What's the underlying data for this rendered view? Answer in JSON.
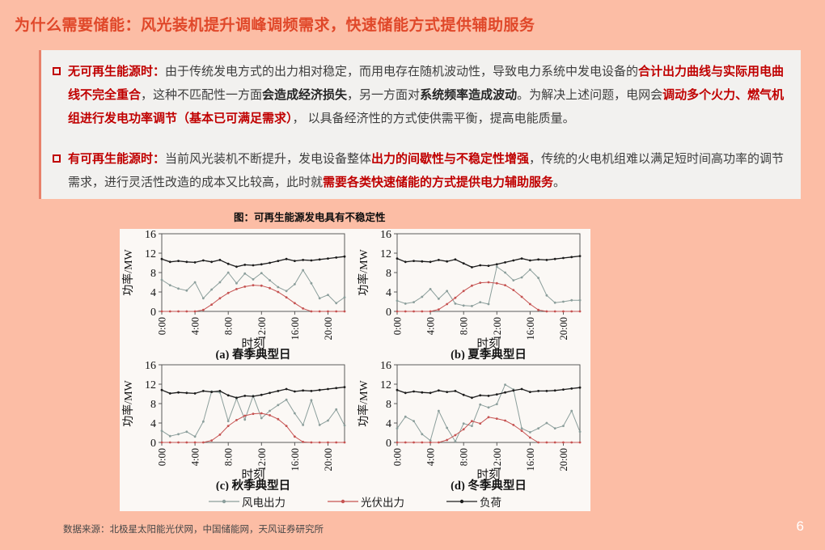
{
  "title": "为什么需要储能：风光装机提升调峰调频需求，快速储能方式提供辅助服务",
  "colors": {
    "background": "#fcbda5",
    "title_red": "#e0482a",
    "accent_red": "#c00000",
    "box_background": "#f2f1ef",
    "figure_background": "#fbf8f5",
    "wind_line": "#8b9e9b",
    "pv_line": "#c65352",
    "load_line": "#1c1c1c"
  },
  "bullets": [
    {
      "segments": [
        {
          "t": "无可再生能源时：",
          "s": "red"
        },
        {
          "t": "由于传统发电方式的出力相对稳定，而用电存在随机波动性，导致电力系统中发电设备的",
          "s": "n"
        },
        {
          "t": "合计出力曲线与实际用电曲线不完全重合",
          "s": "red"
        },
        {
          "t": "，这种不匹配性一方面",
          "s": "n"
        },
        {
          "t": "会造成经济损失",
          "s": "b"
        },
        {
          "t": "，另一方面对",
          "s": "n"
        },
        {
          "t": "系统频率造成波动",
          "s": "b"
        },
        {
          "t": "。为解决上述问题，电网会",
          "s": "n"
        },
        {
          "t": "调动多个火力、燃气机组进行发电功率调节（基本已可满足需求）",
          "s": "red"
        },
        {
          "t": "， 以具备经济性的方式使供需平衡，提高电能质量。",
          "s": "n"
        }
      ]
    },
    {
      "segments": [
        {
          "t": "有可再生能源时：",
          "s": "red"
        },
        {
          "t": "当前风光装机不断提升，发电设备整体",
          "s": "n"
        },
        {
          "t": "出力的间歇性与不稳定性增强",
          "s": "red"
        },
        {
          "t": "，传统的火电机组难以满足短时间高功率的调节需求，进行灵活性改造的成本又比较高，此时就",
          "s": "n"
        },
        {
          "t": "需要各类快速储能的方式提供电力辅助服务",
          "s": "red"
        },
        {
          "t": "。",
          "s": "n"
        }
      ]
    }
  ],
  "figure": {
    "caption": "图：可再生能源发电具有不稳定性"
  },
  "chart_data": {
    "type": "line",
    "title": "图：可再生能源发电具有不稳定性",
    "xlabel": "时刻",
    "ylabel": "功率/MW",
    "ylim": [
      0,
      16
    ],
    "yticks": [
      0,
      4,
      8,
      12,
      16
    ],
    "xticks": [
      "0:00",
      "4:00",
      "8:00",
      "12:00",
      "16:00",
      "20:00"
    ],
    "xtick_hours": [
      0,
      4,
      8,
      12,
      16,
      20
    ],
    "x_hours_max": 22,
    "grid": false,
    "legend_position": "bottom",
    "series_names": [
      "风电出力",
      "光伏出力",
      "负荷"
    ],
    "series_colors": [
      "#8b9e9b",
      "#c65352",
      "#1c1c1c"
    ],
    "subplots": [
      {
        "caption": "(a) 春季典型日",
        "values": [
          [
            6.5,
            5.4,
            4.7,
            4.3,
            6.0,
            2.7,
            4.5,
            6.0,
            8.0,
            5.8,
            7.8,
            6.6,
            7.9,
            6.4,
            5.0,
            4.2,
            5.6,
            8.5,
            5.8,
            2.7,
            3.4,
            1.7,
            2.9
          ],
          [
            0,
            0,
            0,
            0,
            0,
            0.3,
            1.4,
            2.7,
            3.8,
            4.6,
            5.1,
            5.4,
            5.3,
            4.8,
            4.0,
            2.9,
            1.7,
            0.6,
            0,
            0,
            0,
            0,
            0
          ],
          [
            10.8,
            10.2,
            10.4,
            10.2,
            10.1,
            10.5,
            10.2,
            10.6,
            9.8,
            9.2,
            9.6,
            9.5,
            9.7,
            10.0,
            10.4,
            10.8,
            10.4,
            10.6,
            10.5,
            10.7,
            10.9,
            11.1,
            11.3
          ]
        ]
      },
      {
        "caption": "(b) 夏季典型日",
        "values": [
          [
            2.2,
            1.6,
            1.9,
            3.0,
            4.6,
            2.6,
            4.2,
            1.6,
            1.2,
            1.1,
            1.9,
            1.5,
            9.2,
            8.0,
            6.4,
            7.0,
            8.6,
            6.9,
            3.3,
            1.8,
            2.0,
            2.3,
            2.3
          ],
          [
            0,
            0,
            0,
            0,
            0,
            0.4,
            1.5,
            2.8,
            4.2,
            5.3,
            5.9,
            6.0,
            5.8,
            5.4,
            4.4,
            3.0,
            1.5,
            0.3,
            0,
            0,
            0,
            0,
            0
          ],
          [
            10.9,
            10.2,
            10.4,
            10.3,
            10.2,
            10.6,
            10.3,
            10.7,
            9.9,
            9.1,
            9.5,
            9.4,
            9.7,
            10.1,
            10.5,
            10.9,
            10.5,
            10.7,
            10.6,
            10.8,
            11.0,
            11.2,
            11.4
          ]
        ]
      },
      {
        "caption": "(c) 秋季典型日",
        "values": [
          [
            2.4,
            1.3,
            1.7,
            2.2,
            1.2,
            4.3,
            10.5,
            10.3,
            4.4,
            9.0,
            4.7,
            9.6,
            5.0,
            6.5,
            7.7,
            8.8,
            6.0,
            3.6,
            8.7,
            3.6,
            4.5,
            6.8,
            3.5
          ],
          [
            0,
            0,
            0,
            0,
            0,
            0,
            0.4,
            1.6,
            3.4,
            4.6,
            5.5,
            5.9,
            6.0,
            5.6,
            4.8,
            3.4,
            1.2,
            0.1,
            0,
            0,
            0,
            0,
            0
          ],
          [
            10.8,
            10.1,
            10.3,
            10.2,
            10.1,
            10.6,
            10.4,
            10.6,
            9.7,
            9.2,
            9.6,
            9.5,
            9.8,
            10.2,
            10.6,
            11.0,
            10.5,
            10.7,
            10.6,
            10.8,
            11.0,
            11.2,
            11.4
          ]
        ]
      },
      {
        "caption": "(d) 冬季典型日",
        "values": [
          [
            2.9,
            5.3,
            4.4,
            1.7,
            0.4,
            6.5,
            3.0,
            0.2,
            3.9,
            3.4,
            7.8,
            7.2,
            7.9,
            11.9,
            10.9,
            2.9,
            2.1,
            2.9,
            4.0,
            2.9,
            3.4,
            6.5,
            2.2
          ],
          [
            0,
            0,
            0,
            0,
            0,
            0,
            0.5,
            1.5,
            2.7,
            4.4,
            3.9,
            5.2,
            4.9,
            4.5,
            3.6,
            2.4,
            1.0,
            0,
            0,
            0,
            0,
            0,
            0
          ],
          [
            10.8,
            10.2,
            10.5,
            10.3,
            10.2,
            10.7,
            10.4,
            10.6,
            9.8,
            9.2,
            9.7,
            9.6,
            9.9,
            10.3,
            10.7,
            11.0,
            10.4,
            10.6,
            10.6,
            10.7,
            10.9,
            11.1,
            11.3
          ]
        ]
      }
    ]
  },
  "source": "数据来源：北极星太阳能光伏网，中国储能网，天风证券研究所",
  "page_number": "6"
}
